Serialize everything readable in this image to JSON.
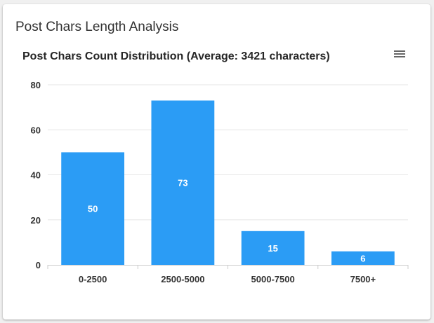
{
  "card": {
    "title": "Post Chars Length Analysis"
  },
  "menu_icon": "hamburger-menu-icon",
  "colors": {
    "bar": "#2b9cf5",
    "grid": "#e6e6e6",
    "axis": "#cccccc"
  },
  "chart_data": {
    "type": "bar",
    "title": "Post Chars Count Distribution (Average: 3421 characters)",
    "xlabel": "",
    "ylabel": "",
    "categories": [
      "0-2500",
      "2500-5000",
      "5000-7500",
      "7500+"
    ],
    "values": [
      50,
      73,
      15,
      6
    ],
    "data_labels": [
      "50",
      "73",
      "15",
      "6"
    ],
    "ylim": [
      0,
      80
    ],
    "yticks": [
      "0",
      "20",
      "40",
      "60",
      "80"
    ],
    "grid": true,
    "legend": "none"
  }
}
